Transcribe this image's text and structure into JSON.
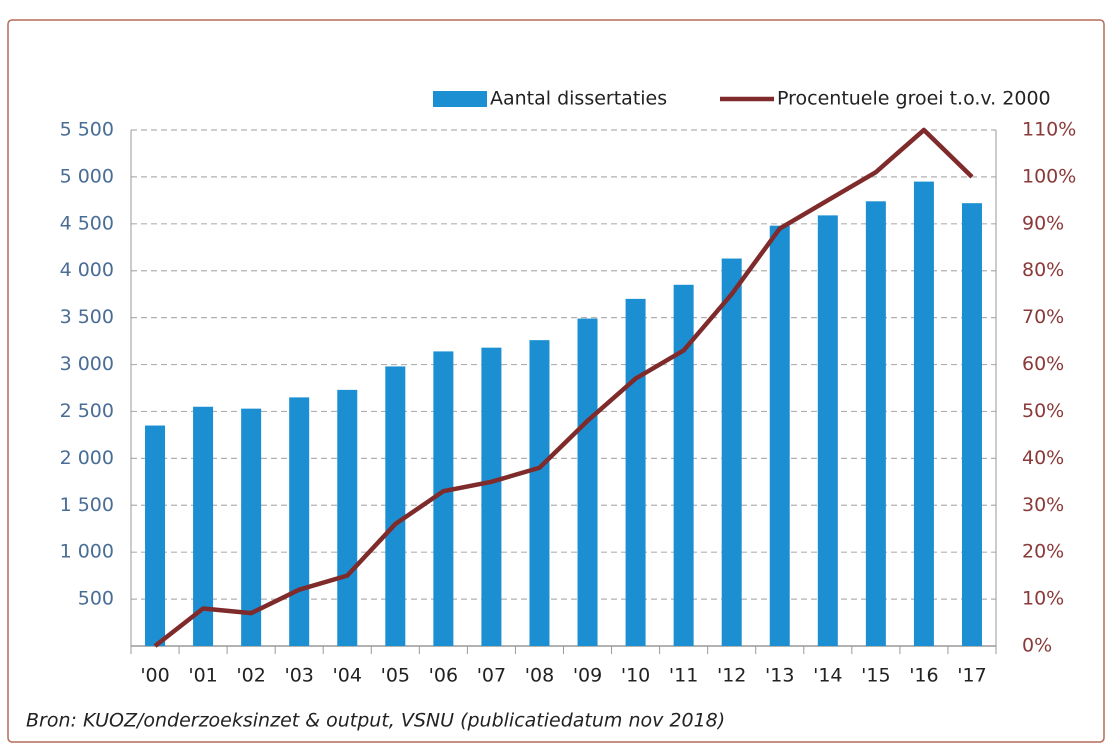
{
  "chart_data": {
    "type": "bar",
    "categories": [
      "'00",
      "'01",
      "'02",
      "'03",
      "'04",
      "'05",
      "'06",
      "'07",
      "'08",
      "'09",
      "'10",
      "'11",
      "'12",
      "'13",
      "'14",
      "'15",
      "'16",
      "'17"
    ],
    "series": [
      {
        "name": "Aantal dissertaties",
        "color": "#1b8fd2",
        "type": "bar",
        "values": [
          2350,
          2550,
          2530,
          2650,
          2730,
          2980,
          3140,
          3180,
          3260,
          3490,
          3700,
          3850,
          4130,
          4480,
          4590,
          4740,
          4950,
          4720
        ]
      },
      {
        "name": "Procentuele groei t.o.v. 2000",
        "color": "#7f2b2b",
        "type": "line",
        "axis": "y2",
        "values": [
          0,
          8,
          7,
          12,
          15,
          26,
          33,
          35,
          38,
          48,
          57,
          63,
          75,
          89,
          95,
          101,
          110,
          100
        ]
      }
    ],
    "ylim": [
      0,
      5500
    ],
    "yticks": [
      500,
      {
        "value": 1000,
        "label": "1 000"
      },
      {
        "value": 1500,
        "label": "1 500"
      },
      {
        "value": 2000,
        "label": "2 000"
      },
      {
        "value": 2500,
        "label": "2 500"
      },
      {
        "value": 3000,
        "label": "3 000"
      },
      {
        "value": 3500,
        "label": "3 500"
      },
      {
        "value": 4000,
        "label": "4 000"
      },
      {
        "value": 4500,
        "label": "4 500"
      },
      {
        "value": 5000,
        "label": "5 000"
      },
      {
        "value": 5500,
        "label": "5 500"
      }
    ],
    "y2lim": [
      0,
      110
    ],
    "y2ticks": [
      {
        "value": 0,
        "label": "0%"
      },
      {
        "value": 10,
        "label": "10%"
      },
      {
        "value": 20,
        "label": "20%"
      },
      {
        "value": 30,
        "label": "30%"
      },
      {
        "value": 40,
        "label": "40%"
      },
      {
        "value": 50,
        "label": "50%"
      },
      {
        "value": 60,
        "label": "60%"
      },
      {
        "value": 70,
        "label": "70%"
      },
      {
        "value": 80,
        "label": "80%"
      },
      {
        "value": 90,
        "label": "90%"
      },
      {
        "value": 100,
        "label": "100%"
      },
      {
        "value": 110,
        "label": "110%"
      }
    ],
    "grid": true,
    "legend": "top-right",
    "source": "Bron: KUOZ/onderzoeksinzet & output, VSNU (publicatiedatum nov 2018)"
  }
}
